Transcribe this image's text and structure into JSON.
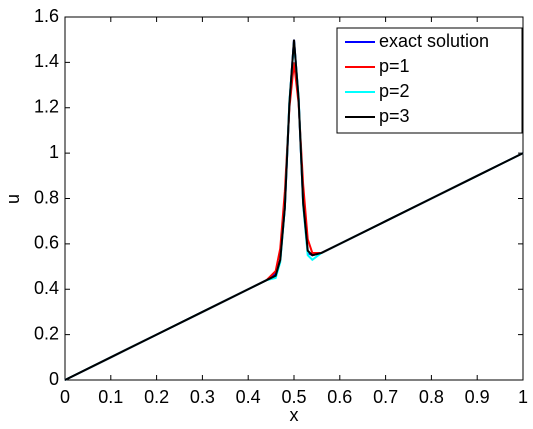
{
  "chart_data": {
    "type": "line",
    "x": [
      0,
      0.1,
      0.2,
      0.3,
      0.4,
      0.44,
      0.46,
      0.47,
      0.48,
      0.49,
      0.5,
      0.51,
      0.52,
      0.53,
      0.54,
      0.56,
      0.6,
      0.7,
      0.8,
      0.9,
      1
    ],
    "series": [
      {
        "name": "exact solution",
        "color": "#0000ff",
        "values": [
          0,
          0.1,
          0.2,
          0.3,
          0.4,
          0.44,
          0.47,
          0.53,
          0.76,
          1.22,
          1.5,
          1.24,
          0.78,
          0.56,
          0.55,
          0.56,
          0.6,
          0.7,
          0.8,
          0.9,
          1
        ]
      },
      {
        "name": "p=1",
        "color": "#ff0000",
        "values": [
          0,
          0.1,
          0.2,
          0.3,
          0.4,
          0.44,
          0.48,
          0.58,
          0.83,
          1.2,
          1.4,
          1.22,
          0.86,
          0.62,
          0.56,
          0.56,
          0.6,
          0.7,
          0.8,
          0.9,
          1
        ]
      },
      {
        "name": "p=2",
        "color": "#00ffff",
        "values": [
          0,
          0.1,
          0.2,
          0.3,
          0.4,
          0.44,
          0.45,
          0.52,
          0.76,
          1.23,
          1.49,
          1.25,
          0.77,
          0.55,
          0.53,
          0.56,
          0.6,
          0.7,
          0.8,
          0.9,
          1
        ]
      },
      {
        "name": "p=3",
        "color": "#000000",
        "values": [
          0,
          0.1,
          0.2,
          0.3,
          0.4,
          0.44,
          0.46,
          0.53,
          0.76,
          1.22,
          1.5,
          1.24,
          0.78,
          0.57,
          0.55,
          0.56,
          0.6,
          0.7,
          0.8,
          0.9,
          1
        ]
      }
    ],
    "x_label": "x",
    "y_label": "u",
    "xlim": [
      0,
      1
    ],
    "xticks": [
      0,
      0.1,
      0.2,
      0.3,
      0.4,
      0.5,
      0.6,
      0.7,
      0.8,
      0.9,
      1
    ],
    "ylim": [
      0,
      1.6
    ],
    "yticks": [
      0,
      0.2,
      0.4,
      0.6,
      0.8,
      1,
      1.2,
      1.4,
      1.6
    ],
    "legend": "top-right"
  }
}
